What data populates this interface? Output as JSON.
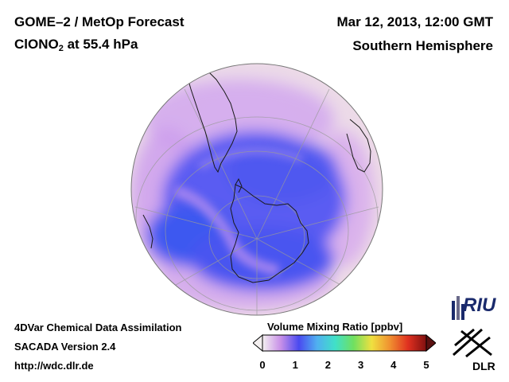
{
  "header": {
    "title_line1": "GOME–2 / MetOp Forecast",
    "species_prefix": "ClONO",
    "species_subscript": "2",
    "species_suffix": " at 55.4 hPa",
    "date": "Mar 12, 2013, 12:00 GMT",
    "region": "Southern Hemisphere"
  },
  "footer": {
    "line1": "4DVar Chemical Data Assimilation",
    "line2": "SACADA Version 2.4",
    "line3": "http://wdc.dlr.de"
  },
  "colorbar": {
    "title": "Volume Mixing Ratio [ppbv]",
    "ticks": [
      "0",
      "1",
      "2",
      "3",
      "4",
      "5"
    ],
    "range": [
      0,
      5
    ],
    "colors": [
      "#f4f0f0",
      "#c890e8",
      "#4a4af0",
      "#50b0f0",
      "#40e0c8",
      "#70e060",
      "#f0e040",
      "#f09030",
      "#e03020",
      "#801010"
    ]
  },
  "map": {
    "projection": "orthographic",
    "hemisphere": "south",
    "ocean_base_color": "#ecdce8",
    "minimum_region_color": "#3b5cf0"
  },
  "logos": {
    "riu_text": "RIU",
    "dlr_text": "DLR"
  }
}
